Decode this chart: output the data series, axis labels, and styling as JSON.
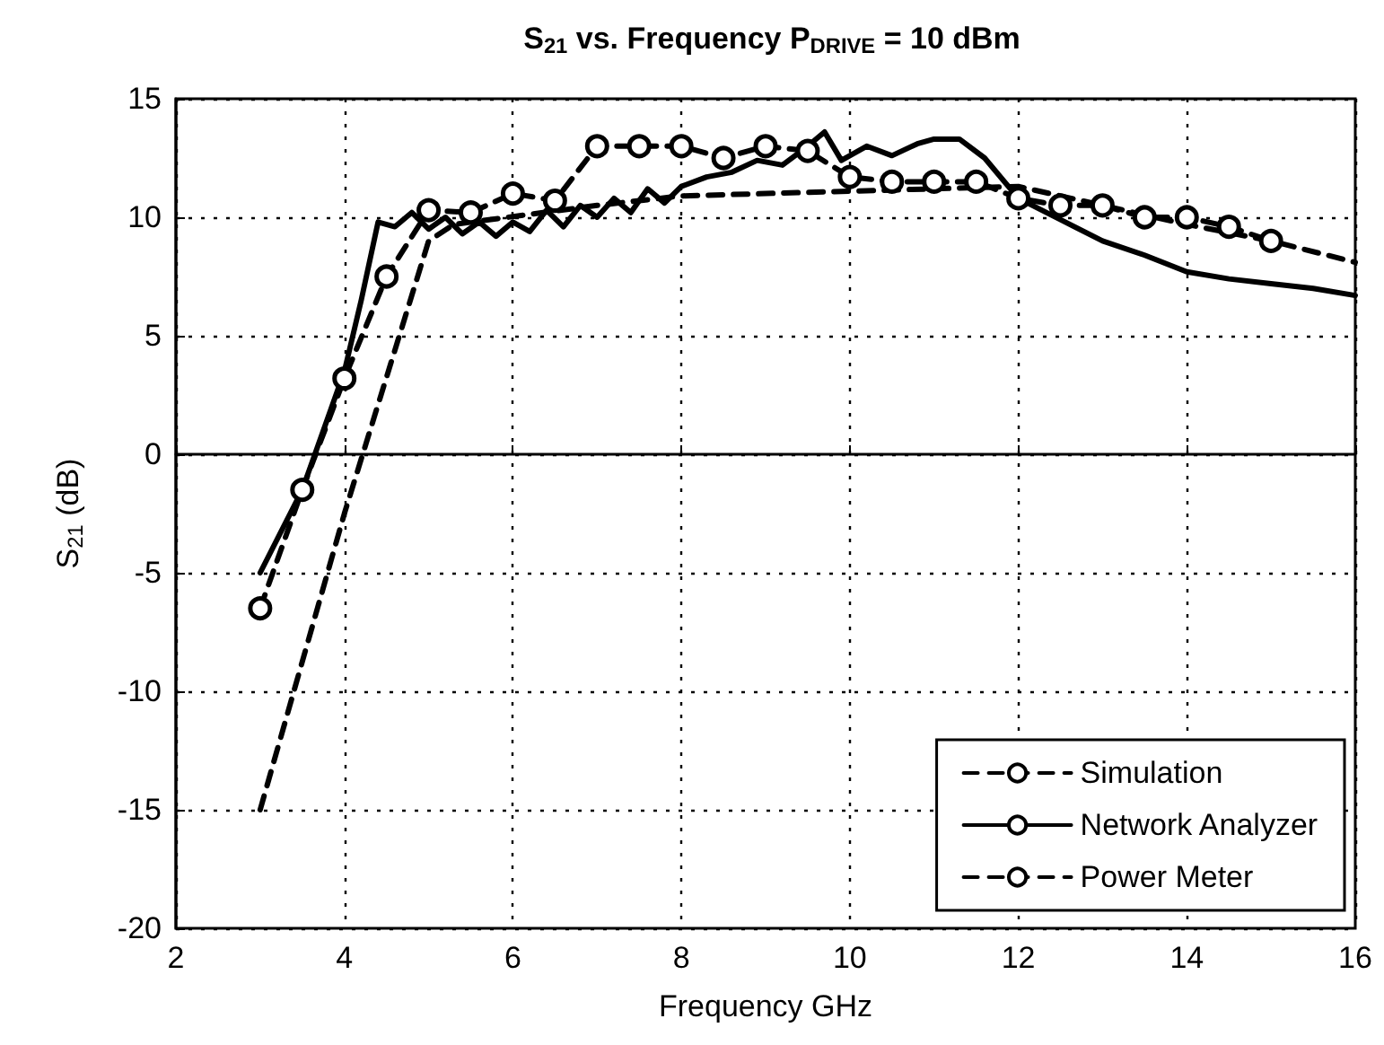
{
  "chart_data": {
    "type": "line",
    "title": "S$_{21}$ vs. Frequency P$_{DRIVE}$ = 10 dBm",
    "xlabel": "Frequency GHz",
    "ylabel": "S$_{21}$ (dB)",
    "xlim": [
      2,
      16
    ],
    "xticks": [
      2,
      4,
      6,
      8,
      10,
      12,
      14,
      16
    ],
    "ylim": [
      -20,
      15
    ],
    "yticks": [
      -20,
      -15,
      -10,
      -5,
      0,
      5,
      10,
      15
    ],
    "grid": true,
    "legend": "bottom right",
    "series": [
      {
        "name": "Simulation",
        "color": "#000000",
        "line_style": "dashed",
        "marker": "none",
        "x": [
          3,
          4,
          5,
          5.3,
          7,
          8,
          10,
          12,
          13,
          14,
          15,
          16
        ],
        "values": [
          -15,
          -2.5,
          9,
          9.7,
          10.5,
          10.9,
          11.1,
          11.3,
          10.5,
          9.7,
          9,
          8.1
        ]
      },
      {
        "name": "Network Analyzer",
        "color": "#000000",
        "line_style": "solid",
        "marker": "none",
        "x": [
          3,
          3.5,
          4,
          4.2,
          4.4,
          4.6,
          4.8,
          5,
          5.2,
          5.4,
          5.6,
          5.8,
          6,
          6.2,
          6.4,
          6.6,
          6.8,
          7,
          7.2,
          7.4,
          7.6,
          7.8,
          8,
          8.3,
          8.6,
          8.9,
          9.2,
          9.5,
          9.7,
          9.9,
          10.2,
          10.5,
          10.8,
          11,
          11.3,
          11.6,
          12,
          12.5,
          13,
          13.5,
          14,
          14.5,
          15,
          15.5,
          16
        ],
        "values": [
          -5,
          -1.5,
          3.5,
          6.5,
          9.8,
          9.6,
          10.2,
          9.5,
          10,
          9.3,
          9.8,
          9.2,
          9.8,
          9.4,
          10.3,
          9.6,
          10.5,
          10,
          10.8,
          10.2,
          11.2,
          10.6,
          11.3,
          11.7,
          11.9,
          12.4,
          12.2,
          13,
          13.6,
          12.4,
          13,
          12.6,
          13.1,
          13.3,
          13.3,
          12.5,
          10.8,
          9.9,
          9,
          8.4,
          7.7,
          7.4,
          7.2,
          7,
          6.7
        ]
      },
      {
        "name": "Power Meter",
        "color": "#000000",
        "line_style": "dashed",
        "marker": "circle",
        "x": [
          3,
          3.5,
          4,
          4.5,
          5,
          5.5,
          6,
          6.5,
          7,
          7.5,
          8,
          8.5,
          9,
          9.5,
          10,
          10.5,
          11,
          11.5,
          12,
          12.5,
          13,
          13.5,
          14,
          14.5,
          15
        ],
        "values": [
          -6.5,
          -1.5,
          3.2,
          7.5,
          10.3,
          10.2,
          11,
          10.7,
          13,
          13,
          13,
          12.5,
          13,
          12.8,
          11.7,
          11.5,
          11.5,
          11.5,
          10.8,
          10.5,
          10.5,
          10,
          10,
          9.6,
          9
        ]
      }
    ]
  }
}
